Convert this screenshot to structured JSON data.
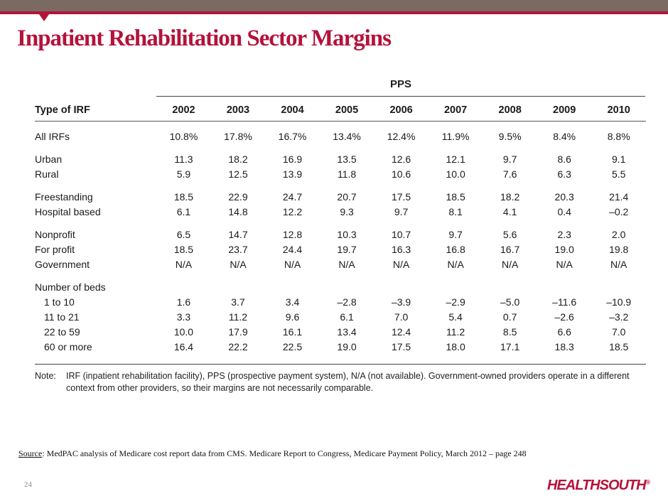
{
  "slide": {
    "title": "Inpatient Rehabilitation Sector Margins",
    "page_number": "24",
    "logo_text": "HEALTHSOUTH",
    "logo_mark": "®"
  },
  "table": {
    "group_header": "PPS",
    "type_header": "Type of IRF",
    "years": [
      "2002",
      "2003",
      "2004",
      "2005",
      "2006",
      "2007",
      "2008",
      "2009",
      "2010"
    ],
    "rows": {
      "all_irfs": {
        "label": "All IRFs",
        "values": [
          "10.8%",
          "17.8%",
          "16.7%",
          "13.4%",
          "12.4%",
          "11.9%",
          "9.5%",
          "8.4%",
          "8.8%"
        ]
      },
      "urban": {
        "label": "Urban",
        "values": [
          "11.3",
          "18.2",
          "16.9",
          "13.5",
          "12.6",
          "12.1",
          "9.7",
          "8.6",
          "9.1"
        ]
      },
      "rural": {
        "label": "Rural",
        "values": [
          "5.9",
          "12.5",
          "13.9",
          "11.8",
          "10.6",
          "10.0",
          "7.6",
          "6.3",
          "5.5"
        ]
      },
      "freestanding": {
        "label": "Freestanding",
        "values": [
          "18.5",
          "22.9",
          "24.7",
          "20.7",
          "17.5",
          "18.5",
          "18.2",
          "20.3",
          "21.4"
        ]
      },
      "hospital": {
        "label": "Hospital based",
        "values": [
          "6.1",
          "14.8",
          "12.2",
          "9.3",
          "9.7",
          "8.1",
          "4.1",
          "0.4",
          "–0.2"
        ]
      },
      "nonprofit": {
        "label": "Nonprofit",
        "values": [
          "6.5",
          "14.7",
          "12.8",
          "10.3",
          "10.7",
          "9.7",
          "5.6",
          "2.3",
          "2.0"
        ]
      },
      "forprofit": {
        "label": "For profit",
        "values": [
          "18.5",
          "23.7",
          "24.4",
          "19.7",
          "16.3",
          "16.8",
          "16.7",
          "19.0",
          "19.8"
        ]
      },
      "government": {
        "label": "Government",
        "values": [
          "N/A",
          "N/A",
          "N/A",
          "N/A",
          "N/A",
          "N/A",
          "N/A",
          "N/A",
          "N/A"
        ]
      },
      "beds_header": {
        "label": "Number of beds"
      },
      "beds_1_10": {
        "label": "1 to 10",
        "values": [
          "1.6",
          "3.7",
          "3.4",
          "–2.8",
          "–3.9",
          "–2.9",
          "–5.0",
          "–11.6",
          "–10.9"
        ]
      },
      "beds_11_21": {
        "label": "11 to 21",
        "values": [
          "3.3",
          "11.2",
          "9.6",
          "6.1",
          "7.0",
          "5.4",
          "0.7",
          "–2.6",
          "–3.2"
        ]
      },
      "beds_22_59": {
        "label": "22 to 59",
        "values": [
          "10.0",
          "17.9",
          "16.1",
          "13.4",
          "12.4",
          "11.2",
          "8.5",
          "6.6",
          "7.0"
        ]
      },
      "beds_60": {
        "label": "60 or more",
        "values": [
          "16.4",
          "22.2",
          "22.5",
          "19.0",
          "17.5",
          "18.0",
          "17.1",
          "18.3",
          "18.5"
        ]
      }
    },
    "note_label": "Note:",
    "note_text": "IRF (inpatient rehabilitation facility), PPS (prospective payment system), N/A (not available). Government-owned providers operate in a different context from other providers, so their margins are not necessarily comparable."
  },
  "source": {
    "label": "Source",
    "text": ": MedPAC analysis of Medicare cost report data from CMS. Medicare Report to Congress, Medicare Payment Policy, March 2012 – page 248"
  },
  "colors": {
    "accent": "#b5123a",
    "top_band": "#7a6a61"
  }
}
